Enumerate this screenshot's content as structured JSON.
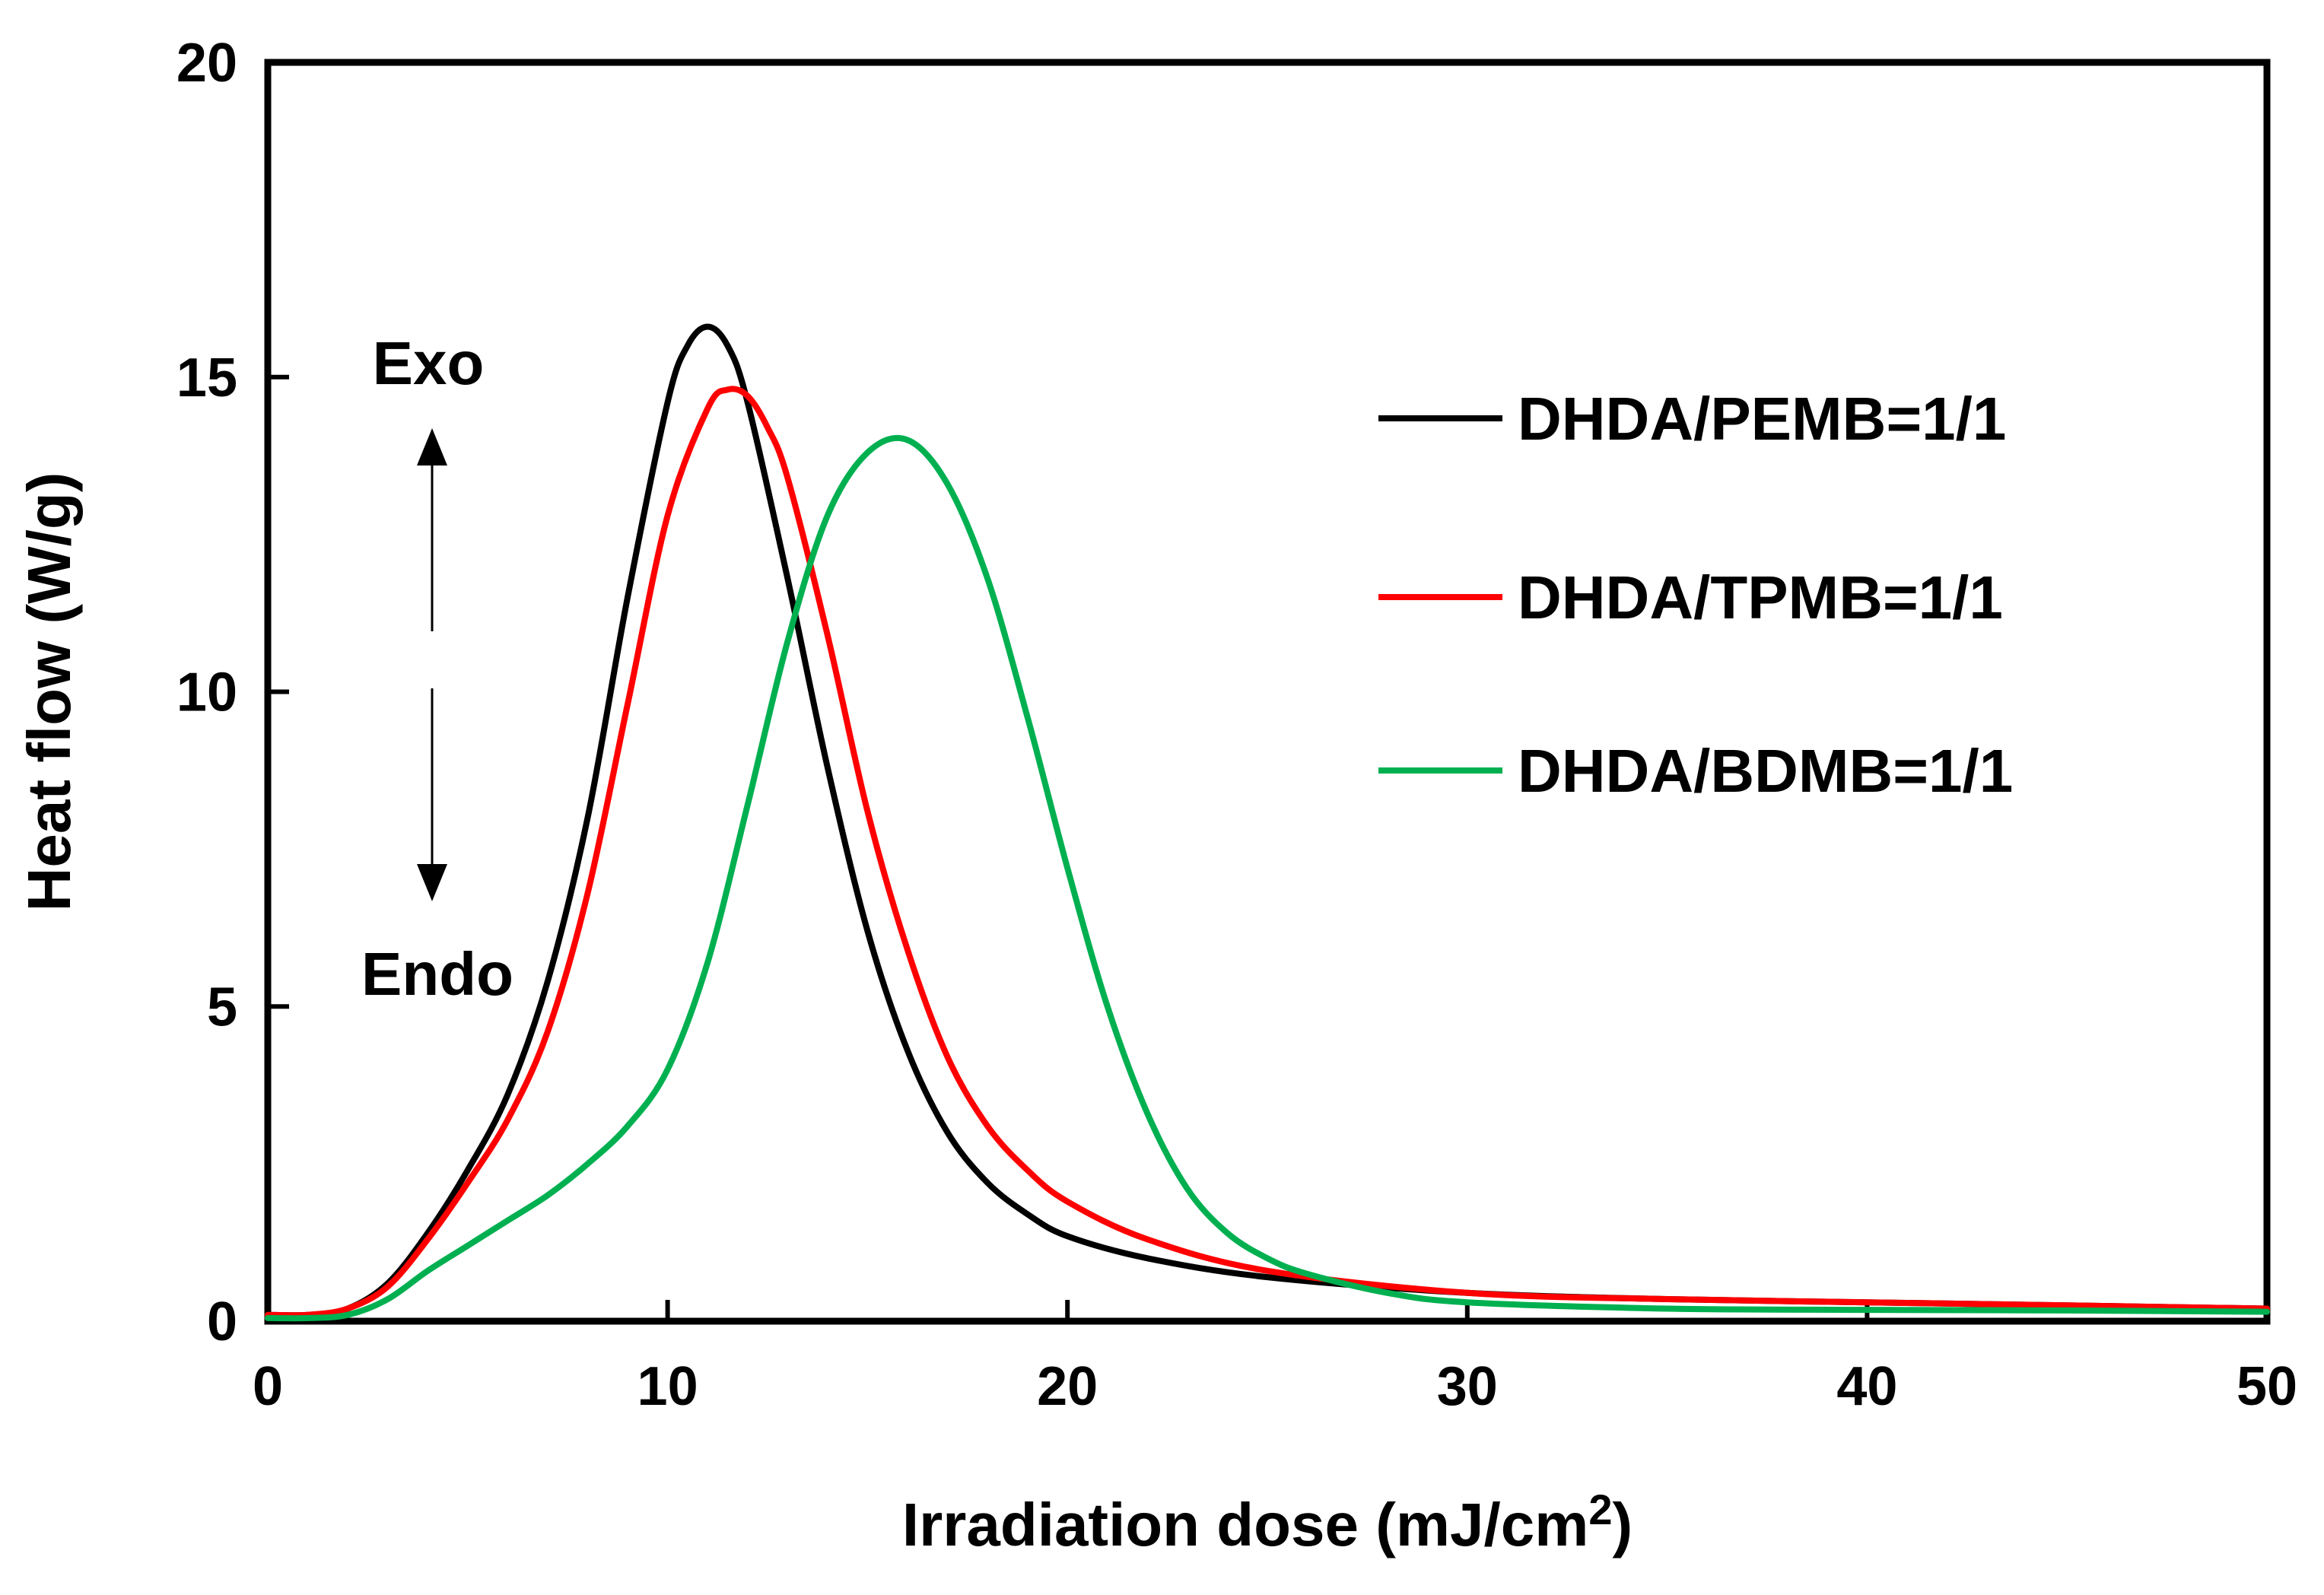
{
  "chart_data": {
    "type": "line",
    "title": "",
    "xlabel": "Irradiation dose (mJ/cm",
    "xlabel_superscript": "2",
    "xlabel_suffix": ")",
    "ylabel": "Heat flow (W/g)",
    "xlim": [
      0,
      50
    ],
    "ylim": [
      0,
      20
    ],
    "xticks": [
      0,
      10,
      20,
      30,
      40,
      50
    ],
    "yticks": [
      0,
      5,
      10,
      15,
      20
    ],
    "xtick_labels": [
      "0",
      "10",
      "20",
      "30",
      "40",
      "50"
    ],
    "ytick_labels": [
      "0",
      "5",
      "10",
      "15",
      "20"
    ],
    "grid": false,
    "legend_position": "right",
    "annotations": {
      "exo": "Exo",
      "endo": "Endo"
    },
    "series": [
      {
        "name": "DHDA/PEMB=1/1",
        "color": "#000000",
        "x": [
          0,
          1,
          2,
          3,
          4,
          5,
          6,
          7,
          8,
          9,
          10,
          10.5,
          11,
          11.5,
          12,
          13,
          14,
          15,
          16,
          17,
          18,
          19,
          20,
          22,
          25,
          30,
          35,
          40,
          45,
          50
        ],
        "y": [
          0.1,
          0.1,
          0.2,
          0.6,
          1.4,
          2.4,
          3.6,
          5.4,
          8.0,
          11.5,
          14.6,
          15.5,
          15.8,
          15.5,
          14.6,
          11.8,
          8.8,
          6.2,
          4.3,
          3.0,
          2.2,
          1.7,
          1.35,
          1.0,
          0.7,
          0.45,
          0.35,
          0.3,
          0.25,
          0.2
        ]
      },
      {
        "name": "DHDA/TPMB=1/1",
        "color": "#ff0000",
        "x": [
          0,
          1,
          2,
          3,
          4,
          5,
          6,
          7,
          8,
          9,
          10,
          11,
          11.5,
          12,
          12.5,
          13,
          14,
          15,
          16,
          17,
          18,
          19,
          20,
          22,
          25,
          30,
          35,
          40,
          45,
          50
        ],
        "y": [
          0.1,
          0.1,
          0.2,
          0.55,
          1.3,
          2.2,
          3.2,
          4.6,
          6.8,
          9.8,
          12.8,
          14.5,
          14.8,
          14.7,
          14.2,
          13.4,
          10.9,
          8.1,
          5.9,
          4.2,
          3.1,
          2.4,
          1.9,
          1.3,
          0.8,
          0.45,
          0.35,
          0.3,
          0.25,
          0.2
        ]
      },
      {
        "name": "DHDA/BDMB=1/1",
        "color": "#00b050",
        "x": [
          0,
          1,
          2,
          3,
          4,
          5,
          6,
          7,
          8,
          9,
          10,
          11,
          12,
          13,
          14,
          15,
          16,
          17,
          18,
          19,
          20,
          21,
          22,
          23,
          24,
          25,
          26,
          28,
          30,
          35,
          40,
          45,
          50
        ],
        "y": [
          0.05,
          0.05,
          0.1,
          0.35,
          0.8,
          1.2,
          1.6,
          2.0,
          2.5,
          3.1,
          4.0,
          5.7,
          8.2,
          10.8,
          12.8,
          13.8,
          14.0,
          13.3,
          11.8,
          9.6,
          7.2,
          5.0,
          3.3,
          2.1,
          1.4,
          1.0,
          0.75,
          0.45,
          0.3,
          0.2,
          0.18,
          0.17,
          0.15
        ]
      }
    ]
  }
}
